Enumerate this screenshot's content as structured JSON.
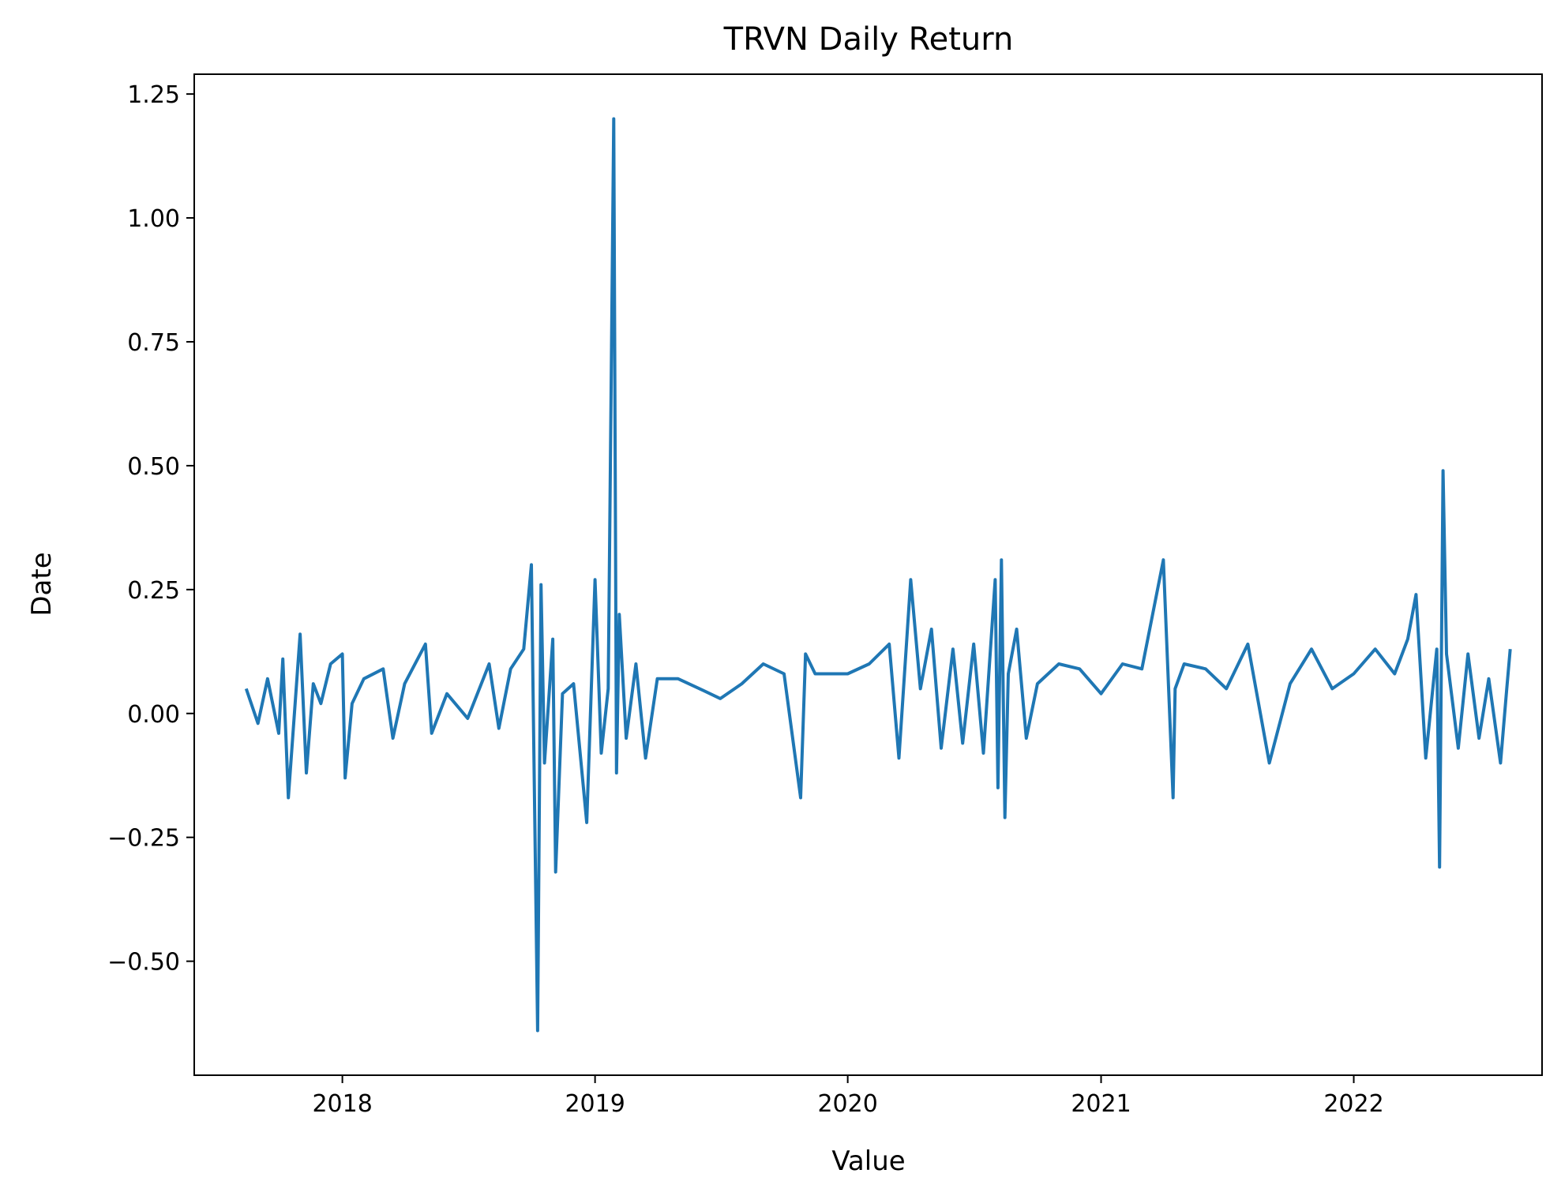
{
  "chart_data": {
    "type": "line",
    "title": "TRVN Daily Return",
    "xlabel": "Value",
    "ylabel": "Date",
    "xlim": [
      "2017-06-01",
      "2022-09-30"
    ],
    "ylim": [
      -0.73,
      1.29
    ],
    "x_ticks": [
      "2018-01-01",
      "2019-01-01",
      "2020-01-01",
      "2021-01-01",
      "2022-01-01"
    ],
    "x_tick_labels": [
      "2018",
      "2019",
      "2020",
      "2021",
      "2022"
    ],
    "y_ticks": [
      -0.5,
      -0.25,
      0.0,
      0.25,
      0.5,
      0.75,
      1.0,
      1.25
    ],
    "y_tick_labels": [
      "−0.50",
      "−0.25",
      "0.00",
      "0.25",
      "0.50",
      "0.75",
      "1.00",
      "1.25"
    ],
    "grid": false,
    "legend": "none",
    "series": [
      {
        "color": "#1f77b4",
        "x": [
          "2017-08-15",
          "2017-09-01",
          "2017-09-15",
          "2017-10-01",
          "2017-10-07",
          "2017-10-15",
          "2017-11-01",
          "2017-11-10",
          "2017-11-20",
          "2017-12-01",
          "2017-12-15",
          "2018-01-01",
          "2018-01-05",
          "2018-01-15",
          "2018-02-01",
          "2018-03-01",
          "2018-03-15",
          "2018-04-01",
          "2018-05-01",
          "2018-05-10",
          "2018-06-01",
          "2018-07-01",
          "2018-08-01",
          "2018-08-15",
          "2018-09-01",
          "2018-09-20",
          "2018-10-01",
          "2018-10-05",
          "2018-10-10",
          "2018-10-15",
          "2018-10-20",
          "2018-11-01",
          "2018-11-05",
          "2018-11-15",
          "2018-12-01",
          "2018-12-20",
          "2019-01-01",
          "2019-01-10",
          "2019-01-20",
          "2019-01-28",
          "2019-02-01",
          "2019-02-05",
          "2019-02-15",
          "2019-03-01",
          "2019-03-15",
          "2019-04-01",
          "2019-05-01",
          "2019-06-01",
          "2019-07-01",
          "2019-08-01",
          "2019-09-01",
          "2019-10-01",
          "2019-10-25",
          "2019-11-01",
          "2019-11-15",
          "2019-12-01",
          "2020-01-01",
          "2020-02-01",
          "2020-03-01",
          "2020-03-15",
          "2020-04-01",
          "2020-04-15",
          "2020-05-01",
          "2020-05-15",
          "2020-06-01",
          "2020-06-15",
          "2020-07-01",
          "2020-07-15",
          "2020-08-01",
          "2020-08-05",
          "2020-08-10",
          "2020-08-15",
          "2020-08-20",
          "2020-09-01",
          "2020-09-15",
          "2020-10-01",
          "2020-11-01",
          "2020-12-01",
          "2021-01-01",
          "2021-02-01",
          "2021-03-01",
          "2021-04-01",
          "2021-04-15",
          "2021-04-18",
          "2021-05-01",
          "2021-06-01",
          "2021-07-01",
          "2021-08-01",
          "2021-09-01",
          "2021-10-01",
          "2021-11-01",
          "2021-12-01",
          "2022-01-01",
          "2022-02-01",
          "2022-03-01",
          "2022-03-20",
          "2022-04-01",
          "2022-04-15",
          "2022-05-01",
          "2022-05-05",
          "2022-05-10",
          "2022-05-15",
          "2022-06-01",
          "2022-06-15",
          "2022-07-01",
          "2022-07-15",
          "2022-08-01",
          "2022-08-10",
          "2022-08-15"
        ],
        "y": [
          0.05,
          -0.02,
          0.07,
          -0.04,
          0.11,
          -0.17,
          0.16,
          -0.12,
          0.06,
          0.02,
          0.1,
          0.12,
          -0.13,
          0.02,
          0.07,
          0.09,
          -0.05,
          0.06,
          0.14,
          -0.04,
          0.04,
          -0.01,
          0.1,
          -0.03,
          0.09,
          0.13,
          0.3,
          -0.12,
          -0.64,
          0.26,
          -0.1,
          0.15,
          -0.32,
          0.04,
          0.06,
          -0.22,
          0.27,
          -0.08,
          0.05,
          1.2,
          -0.12,
          0.2,
          -0.05,
          0.1,
          -0.09,
          0.07,
          0.07,
          0.05,
          0.03,
          0.06,
          0.1,
          0.08,
          -0.17,
          0.12,
          0.08,
          0.08,
          0.08,
          0.1,
          0.14,
          -0.09,
          0.27,
          0.05,
          0.17,
          -0.07,
          0.13,
          -0.06,
          0.14,
          -0.08,
          0.27,
          -0.15,
          0.31,
          -0.21,
          0.08,
          0.17,
          -0.05,
          0.06,
          0.1,
          0.09,
          0.04,
          0.1,
          0.09,
          0.31,
          -0.17,
          0.05,
          0.1,
          0.09,
          0.05,
          0.14,
          -0.1,
          0.06,
          0.13,
          0.05,
          0.08,
          0.13,
          0.08,
          0.15,
          0.24,
          -0.09,
          0.13,
          -0.31,
          0.49,
          0.12,
          -0.07,
          0.12,
          -0.05,
          0.07,
          -0.1,
          0.05,
          0.13
        ]
      }
    ]
  }
}
